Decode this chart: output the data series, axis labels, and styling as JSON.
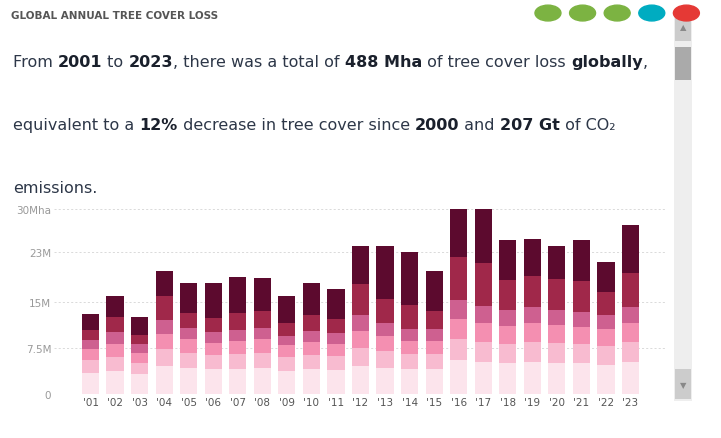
{
  "title": "GLOBAL ANNUAL TREE COVER LOSS",
  "bg_color": "#ffffff",
  "text_color": "#4a5568",
  "years": [
    "'01",
    "'02",
    "'03",
    "'04",
    "'05",
    "'06",
    "'07",
    "'08",
    "'09",
    "'10",
    "'11",
    "'12",
    "'13",
    "'14",
    "'15",
    "'16",
    "'17",
    "'18",
    "'19",
    "'20",
    "'21",
    "'22",
    "'23"
  ],
  "colors": [
    "#fce4ec",
    "#f8bbd0",
    "#f48fb1",
    "#ce6090",
    "#a0284a",
    "#5c0a2e"
  ],
  "ylim": [
    0,
    31000000
  ],
  "yticks": [
    0,
    7500000,
    15000000,
    23000000,
    30000000
  ],
  "ytick_labels": [
    "0",
    "7.5M",
    "15M",
    "23M",
    "30Mha"
  ],
  "bar_data": [
    [
      3500000,
      3800000,
      3200000,
      4500000,
      4200000,
      4000000,
      4100000,
      4200000,
      3800000,
      4000000,
      3900000,
      4500000,
      4300000,
      4000000,
      4000000,
      5500000,
      5200000,
      5000000,
      5200000,
      5100000,
      5000000,
      4800000,
      5200000
    ],
    [
      2000000,
      2200000,
      1800000,
      2800000,
      2500000,
      2300000,
      2400000,
      2500000,
      2200000,
      2400000,
      2300000,
      3000000,
      2700000,
      2500000,
      2500000,
      3500000,
      3300000,
      3200000,
      3300000,
      3200000,
      3100000,
      3000000,
      3300000
    ],
    [
      1800000,
      2100000,
      1700000,
      2500000,
      2200000,
      2000000,
      2100000,
      2200000,
      1900000,
      2100000,
      2000000,
      2800000,
      2500000,
      2200000,
      2200000,
      3200000,
      3000000,
      2900000,
      3000000,
      2900000,
      2800000,
      2700000,
      3000000
    ],
    [
      1500000,
      1900000,
      1400000,
      2200000,
      1800000,
      1700000,
      1800000,
      1900000,
      1600000,
      1800000,
      1700000,
      2500000,
      2000000,
      1900000,
      1800000,
      3000000,
      2800000,
      2500000,
      2600000,
      2500000,
      2500000,
      2300000,
      2600000
    ],
    [
      1600000,
      2500000,
      1500000,
      4000000,
      2500000,
      2400000,
      2700000,
      2700000,
      2000000,
      2500000,
      2300000,
      5000000,
      4000000,
      3800000,
      3000000,
      7000000,
      7000000,
      5000000,
      5000000,
      5000000,
      5000000,
      3700000,
      5500000
    ],
    [
      2600000,
      3500000,
      2900000,
      4000000,
      4800000,
      5600000,
      5900000,
      5400000,
      4500000,
      5200000,
      4800000,
      6200000,
      8500000,
      8600000,
      6500000,
      7800000,
      8700000,
      6400000,
      6000000,
      5300000,
      6600000,
      5000000,
      7900000
    ]
  ],
  "icon_colors": [
    "#7cb342",
    "#7cb342",
    "#7cb342",
    "#00acc1",
    "#e53935"
  ],
  "scrollbar_color": "#e0e0e0",
  "scrollbar_handle": "#bdbdbd"
}
